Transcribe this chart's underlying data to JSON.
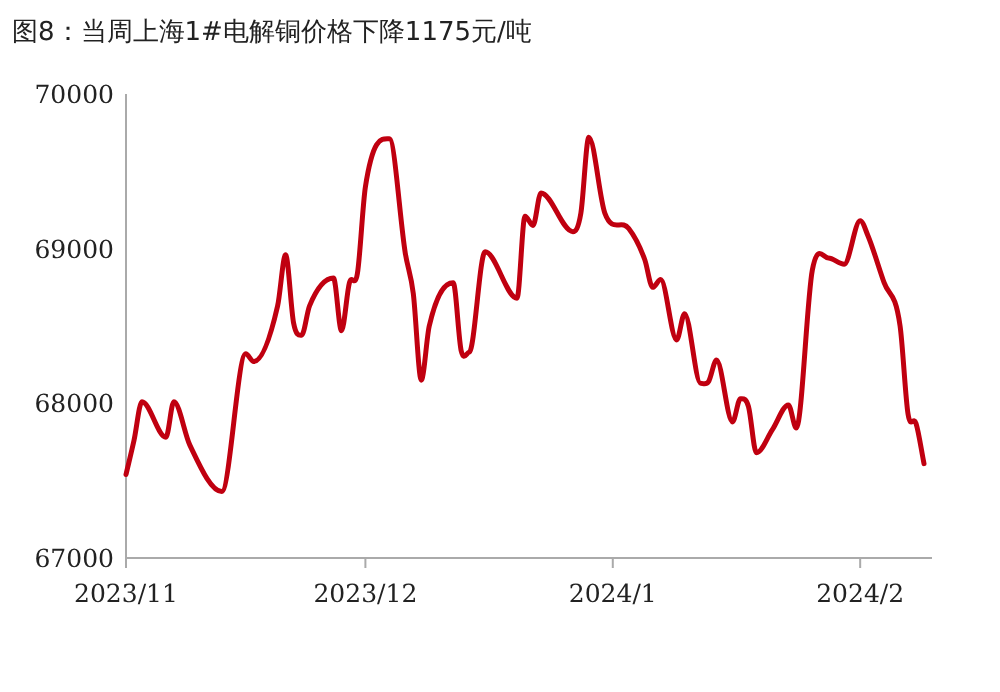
{
  "chart_data": {
    "type": "line",
    "title": "图8：当周上海1#电解铜价格下降1175元/吨",
    "x": [
      "2023-11-01",
      "2023-11-02",
      "2023-11-03",
      "2023-11-06",
      "2023-11-07",
      "2023-11-09",
      "2023-11-13",
      "2023-11-16",
      "2023-11-17",
      "2023-11-20",
      "2023-11-21",
      "2023-11-22",
      "2023-11-23",
      "2023-11-24",
      "2023-11-27",
      "2023-11-28",
      "2023-11-29",
      "2023-11-30",
      "2023-12-01",
      "2023-12-04",
      "2023-12-06",
      "2023-12-07",
      "2023-12-08",
      "2023-12-09",
      "2023-12-12",
      "2023-12-13",
      "2023-12-14",
      "2023-12-16",
      "2023-12-20",
      "2023-12-21",
      "2023-12-22",
      "2023-12-23",
      "2023-12-27",
      "2023-12-28",
      "2023-12-29",
      "2023-12-31",
      "2024-01-03",
      "2024-01-05",
      "2024-01-06",
      "2024-01-07",
      "2024-01-09",
      "2024-01-10",
      "2024-01-12",
      "2024-01-13",
      "2024-01-14",
      "2024-01-16",
      "2024-01-17",
      "2024-01-18",
      "2024-01-19",
      "2024-01-21",
      "2024-01-23",
      "2024-01-24",
      "2024-01-26",
      "2024-01-28",
      "2024-01-30",
      "2024-02-01",
      "2024-02-02",
      "2024-02-04",
      "2024-02-06",
      "2024-02-07",
      "2024-02-08",
      "2024-02-09"
    ],
    "series": [
      {
        "color": "#c00010",
        "values": [
          67540,
          67760,
          68010,
          67780,
          68010,
          67730,
          67430,
          68320,
          68270,
          68630,
          68960,
          68520,
          68440,
          68630,
          68810,
          68470,
          68780,
          68840,
          69400,
          69710,
          68970,
          68710,
          68150,
          68500,
          68780,
          68340,
          68330,
          68980,
          68680,
          69210,
          69150,
          69360,
          69110,
          69230,
          69720,
          69230,
          69130,
          68930,
          68750,
          68800,
          68410,
          68580,
          68130,
          68140,
          68280,
          67880,
          68030,
          67980,
          67680,
          67830,
          67990,
          67840,
          68860,
          68940,
          68900,
          69180,
          69080,
          68780,
          68500,
          67930,
          67870,
          67610
        ]
      }
    ],
    "xlim": [
      "2023-11-01",
      "2024-02-10"
    ],
    "xticks": [
      {
        "value": "2023-11-01",
        "label": "2023/11"
      },
      {
        "value": "2023-12-01",
        "label": "2023/12"
      },
      {
        "value": "2024-01-01",
        "label": "2024/1"
      },
      {
        "value": "2024-02-01",
        "label": "2024/2"
      }
    ],
    "ylim": [
      67000,
      70000
    ],
    "yticks": [
      67000,
      68000,
      69000,
      70000
    ],
    "grid": false,
    "marker": "none",
    "line_style": "solid"
  }
}
